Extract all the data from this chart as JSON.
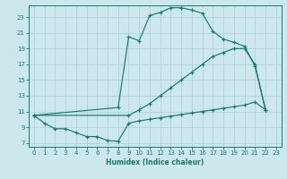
{
  "xlabel": "Humidex (Indice chaleur)",
  "bg_color": "#cce8ec",
  "line_color": "#1a7870",
  "grid_color": "#aacdd4",
  "xlim": [
    -0.5,
    23.5
  ],
  "ylim": [
    6.5,
    24.5
  ],
  "xticks": [
    0,
    1,
    2,
    3,
    4,
    5,
    6,
    7,
    8,
    9,
    10,
    11,
    12,
    13,
    14,
    15,
    16,
    17,
    18,
    19,
    20,
    21,
    22,
    23
  ],
  "yticks": [
    7,
    9,
    11,
    13,
    15,
    17,
    19,
    21,
    23
  ],
  "curve_top_x": [
    0,
    8,
    9,
    10,
    11,
    12,
    13,
    14,
    15,
    16,
    17,
    18,
    19,
    20,
    21,
    22
  ],
  "curve_top_y": [
    10.5,
    11.5,
    20.5,
    20.0,
    23.2,
    23.6,
    24.2,
    24.2,
    23.9,
    23.5,
    21.2,
    20.2,
    19.8,
    19.3,
    16.8,
    11.2
  ],
  "curve_mid_x": [
    0,
    9,
    10,
    11,
    12,
    13,
    14,
    15,
    16,
    17,
    18,
    19,
    20,
    21,
    22
  ],
  "curve_mid_y": [
    10.5,
    10.5,
    11.2,
    12.0,
    13.0,
    14.0,
    15.0,
    16.0,
    17.0,
    18.0,
    18.5,
    19.0,
    19.0,
    17.0,
    11.2
  ],
  "curve_bot_x": [
    0,
    1,
    2,
    3,
    4,
    5,
    6,
    7,
    8,
    9,
    10,
    11,
    12,
    13,
    14,
    15,
    16,
    17,
    18,
    19,
    20,
    21,
    22
  ],
  "curve_bot_y": [
    10.5,
    9.5,
    8.8,
    8.8,
    8.3,
    7.8,
    7.8,
    7.3,
    7.2,
    9.5,
    9.8,
    10.0,
    10.2,
    10.4,
    10.6,
    10.8,
    11.0,
    11.2,
    11.4,
    11.6,
    11.8,
    12.2,
    11.2
  ]
}
